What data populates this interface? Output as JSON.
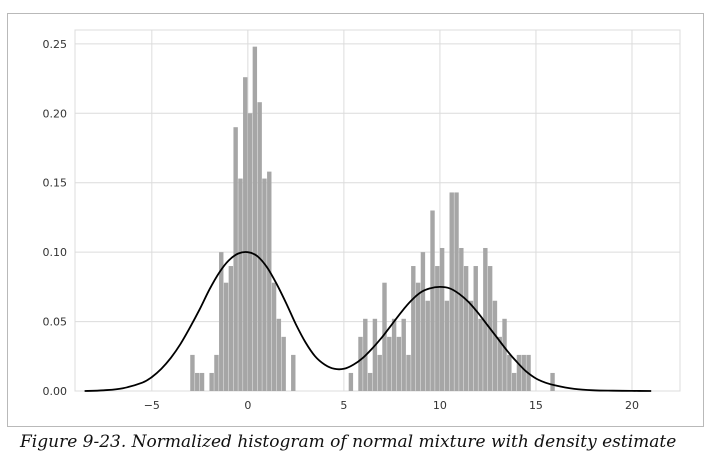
{
  "caption": "Figure 9-23. Normalized histogram of normal mixture with density estimate",
  "colors": {
    "bar": "#a6a6a6",
    "line": "#000000",
    "grid": "#dcdcdc",
    "frame": "#b9b9b9"
  },
  "chart_data": {
    "type": "bar",
    "title": "",
    "xlabel": "",
    "ylabel": "",
    "xlim": [
      -9,
      22.5
    ],
    "ylim": [
      0,
      0.26
    ],
    "grid": true,
    "xticks": [
      -5,
      0,
      5,
      10,
      15,
      20
    ],
    "xtick_labels": [
      "−5",
      "0",
      "5",
      "10",
      "15",
      "20"
    ],
    "yticks": [
      0.0,
      0.05,
      0.1,
      0.15,
      0.2,
      0.25
    ],
    "ytick_labels": [
      "0.00",
      "0.05",
      "0.10",
      "0.15",
      "0.20",
      "0.25"
    ],
    "histogram": {
      "bin_width": 0.25,
      "bins": [
        {
          "x": -3.0,
          "y": 0.026
        },
        {
          "x": -2.75,
          "y": 0.013
        },
        {
          "x": -2.5,
          "y": 0.013
        },
        {
          "x": -2.0,
          "y": 0.013
        },
        {
          "x": -1.75,
          "y": 0.026
        },
        {
          "x": -1.5,
          "y": 0.1
        },
        {
          "x": -1.25,
          "y": 0.078
        },
        {
          "x": -1.0,
          "y": 0.09
        },
        {
          "x": -0.75,
          "y": 0.19
        },
        {
          "x": -0.5,
          "y": 0.153
        },
        {
          "x": -0.25,
          "y": 0.226
        },
        {
          "x": 0.0,
          "y": 0.2
        },
        {
          "x": 0.25,
          "y": 0.248
        },
        {
          "x": 0.5,
          "y": 0.208
        },
        {
          "x": 0.75,
          "y": 0.153
        },
        {
          "x": 1.0,
          "y": 0.158
        },
        {
          "x": 1.25,
          "y": 0.078
        },
        {
          "x": 1.5,
          "y": 0.052
        },
        {
          "x": 1.75,
          "y": 0.039
        },
        {
          "x": 2.25,
          "y": 0.026
        },
        {
          "x": 5.25,
          "y": 0.013
        },
        {
          "x": 5.75,
          "y": 0.039
        },
        {
          "x": 6.0,
          "y": 0.052
        },
        {
          "x": 6.25,
          "y": 0.013
        },
        {
          "x": 6.5,
          "y": 0.052
        },
        {
          "x": 6.75,
          "y": 0.026
        },
        {
          "x": 7.0,
          "y": 0.078
        },
        {
          "x": 7.25,
          "y": 0.039
        },
        {
          "x": 7.5,
          "y": 0.052
        },
        {
          "x": 7.75,
          "y": 0.039
        },
        {
          "x": 8.0,
          "y": 0.052
        },
        {
          "x": 8.25,
          "y": 0.026
        },
        {
          "x": 8.5,
          "y": 0.09
        },
        {
          "x": 8.75,
          "y": 0.078
        },
        {
          "x": 9.0,
          "y": 0.1
        },
        {
          "x": 9.25,
          "y": 0.065
        },
        {
          "x": 9.5,
          "y": 0.13
        },
        {
          "x": 9.75,
          "y": 0.09
        },
        {
          "x": 10.0,
          "y": 0.103
        },
        {
          "x": 10.25,
          "y": 0.065
        },
        {
          "x": 10.5,
          "y": 0.143
        },
        {
          "x": 10.75,
          "y": 0.143
        },
        {
          "x": 11.0,
          "y": 0.103
        },
        {
          "x": 11.25,
          "y": 0.09
        },
        {
          "x": 11.5,
          "y": 0.065
        },
        {
          "x": 11.75,
          "y": 0.09
        },
        {
          "x": 12.0,
          "y": 0.052
        },
        {
          "x": 12.25,
          "y": 0.103
        },
        {
          "x": 12.5,
          "y": 0.09
        },
        {
          "x": 12.75,
          "y": 0.065
        },
        {
          "x": 13.0,
          "y": 0.039
        },
        {
          "x": 13.25,
          "y": 0.052
        },
        {
          "x": 13.5,
          "y": 0.026
        },
        {
          "x": 13.75,
          "y": 0.013
        },
        {
          "x": 14.0,
          "y": 0.026
        },
        {
          "x": 14.25,
          "y": 0.026
        },
        {
          "x": 14.5,
          "y": 0.026
        },
        {
          "x": 15.75,
          "y": 0.013
        }
      ]
    },
    "density": {
      "x": [
        -8.5,
        -7.5,
        -6.5,
        -5.5,
        -5.0,
        -4.5,
        -4.0,
        -3.5,
        -3.0,
        -2.5,
        -2.0,
        -1.5,
        -1.0,
        -0.5,
        0.0,
        0.5,
        1.0,
        1.5,
        2.0,
        2.5,
        3.0,
        3.5,
        4.0,
        4.5,
        5.0,
        5.5,
        6.0,
        6.5,
        7.0,
        7.5,
        8.0,
        8.5,
        9.0,
        9.5,
        10.0,
        10.5,
        11.0,
        11.5,
        12.0,
        12.5,
        13.0,
        13.5,
        14.0,
        14.5,
        15.0,
        15.5,
        16.0,
        17.0,
        18.0,
        19.0,
        20.0,
        21.0
      ],
      "y": [
        0.0,
        0.0005,
        0.002,
        0.006,
        0.01,
        0.016,
        0.024,
        0.034,
        0.046,
        0.059,
        0.073,
        0.085,
        0.094,
        0.099,
        0.1,
        0.097,
        0.089,
        0.077,
        0.063,
        0.048,
        0.035,
        0.025,
        0.019,
        0.016,
        0.016,
        0.019,
        0.024,
        0.031,
        0.039,
        0.048,
        0.057,
        0.065,
        0.071,
        0.074,
        0.075,
        0.074,
        0.07,
        0.064,
        0.056,
        0.047,
        0.038,
        0.029,
        0.021,
        0.014,
        0.009,
        0.006,
        0.004,
        0.0015,
        0.0005,
        0.0002,
        0.0001,
        0.0
      ]
    }
  }
}
